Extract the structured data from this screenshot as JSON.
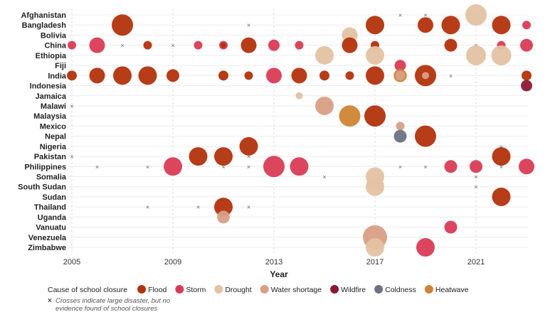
{
  "chart_data": {
    "type": "scatter",
    "subtype": "bubble timeline",
    "xlabel": "Year",
    "xlim": [
      2005,
      2023
    ],
    "xticks": [
      2005,
      2009,
      2013,
      2017,
      2021
    ],
    "grid": "horizontal rows, dashed verticals at ticks",
    "legend_title": "Cause of school closure",
    "legend_position": "bottom",
    "legend_note": [
      "Crosses indicate large disaster, but no",
      "evidence found of school closures"
    ],
    "types": [
      {
        "key": "F",
        "name": "Flood",
        "color": "#b3320c"
      },
      {
        "key": "S",
        "name": "Storm",
        "color": "#d93c55"
      },
      {
        "key": "D",
        "name": "Drought",
        "color": "#e4c2a2"
      },
      {
        "key": "W",
        "name": "Water shortage",
        "color": "#d89f86"
      },
      {
        "key": "WF",
        "name": "Wildfire",
        "color": "#8a1a30"
      },
      {
        "key": "C",
        "name": "Coldness",
        "color": "#6b7280"
      },
      {
        "key": "H",
        "name": "Heatwave",
        "color": "#cd8535"
      }
    ],
    "cross_marker": "×",
    "point_fields": [
      "year",
      "type",
      "relative_size"
    ],
    "countries": [
      {
        "name": "Afghanistan",
        "points": [
          [
            2018,
            "X",
            0
          ],
          [
            2019,
            "X",
            0
          ],
          [
            2021,
            "D",
            15
          ]
        ]
      },
      {
        "name": "Bangladesh",
        "points": [
          [
            2007,
            "F",
            15
          ],
          [
            2012,
            "X",
            0
          ],
          [
            2017,
            "F",
            13
          ],
          [
            2019,
            "F",
            11
          ],
          [
            2020,
            "F",
            13
          ],
          [
            2022,
            "F",
            13
          ],
          [
            2023,
            "S",
            6
          ]
        ]
      },
      {
        "name": "Bolivia",
        "points": [
          [
            2016,
            "D",
            11
          ]
        ]
      },
      {
        "name": "China",
        "points": [
          [
            2005,
            "S",
            6
          ],
          [
            2006,
            "S",
            11
          ],
          [
            2007,
            "X",
            0
          ],
          [
            2008,
            "F",
            6
          ],
          [
            2009,
            "X",
            0
          ],
          [
            2010,
            "S",
            6
          ],
          [
            2011,
            "S",
            6
          ],
          [
            2011,
            "F",
            4
          ],
          [
            2012,
            "F",
            11
          ],
          [
            2013,
            "S",
            8
          ],
          [
            2014,
            "S",
            6
          ],
          [
            2016,
            "F",
            11
          ],
          [
            2017,
            "F",
            6
          ],
          [
            2020,
            "F",
            9
          ],
          [
            2021,
            "X",
            0
          ],
          [
            2022,
            "S",
            6
          ],
          [
            2023,
            "S",
            9
          ]
        ]
      },
      {
        "name": "Ethiopia",
        "points": [
          [
            2015,
            "D",
            13
          ],
          [
            2017,
            "D",
            13
          ],
          [
            2021,
            "D",
            14
          ],
          [
            2022,
            "D",
            14
          ]
        ]
      },
      {
        "name": "Fiji",
        "points": [
          [
            2018,
            "S",
            8
          ]
        ]
      },
      {
        "name": "India",
        "points": [
          [
            2005,
            "F",
            7
          ],
          [
            2006,
            "F",
            11
          ],
          [
            2007,
            "F",
            13
          ],
          [
            2008,
            "F",
            13
          ],
          [
            2009,
            "F",
            9
          ],
          [
            2011,
            "F",
            7
          ],
          [
            2012,
            "F",
            6
          ],
          [
            2013,
            "S",
            11
          ],
          [
            2014,
            "F",
            11
          ],
          [
            2015,
            "F",
            7
          ],
          [
            2016,
            "F",
            6
          ],
          [
            2017,
            "F",
            13
          ],
          [
            2018,
            "H",
            8
          ],
          [
            2018,
            "W",
            6
          ],
          [
            2019,
            "F",
            15
          ],
          [
            2019,
            "W",
            5
          ],
          [
            2020,
            "X",
            0
          ],
          [
            2023,
            "F",
            7
          ]
        ]
      },
      {
        "name": "Indonesia",
        "points": [
          [
            2023,
            "WF",
            8
          ]
        ]
      },
      {
        "name": "Jamaica",
        "points": [
          [
            2014,
            "D",
            5
          ]
        ]
      },
      {
        "name": "Malawi",
        "points": [
          [
            2005,
            "X",
            0
          ],
          [
            2015,
            "W",
            13
          ]
        ]
      },
      {
        "name": "Malaysia",
        "points": [
          [
            2016,
            "H",
            15
          ],
          [
            2017,
            "F",
            15
          ]
        ]
      },
      {
        "name": "Mexico",
        "points": [
          [
            2018,
            "W",
            6
          ]
        ]
      },
      {
        "name": "Nepal",
        "points": [
          [
            2018,
            "C",
            9
          ],
          [
            2019,
            "F",
            15
          ]
        ]
      },
      {
        "name": "Nigeria",
        "points": [
          [
            2012,
            "F",
            13
          ],
          [
            2022,
            "X",
            0
          ]
        ]
      },
      {
        "name": "Pakistan",
        "points": [
          [
            2005,
            "X",
            0
          ],
          [
            2010,
            "F",
            13
          ],
          [
            2011,
            "F",
            13
          ],
          [
            2012,
            "X",
            0
          ],
          [
            2022,
            "F",
            13
          ]
        ]
      },
      {
        "name": "Philippines",
        "points": [
          [
            2006,
            "X",
            0
          ],
          [
            2008,
            "X",
            0
          ],
          [
            2009,
            "S",
            13
          ],
          [
            2011,
            "X",
            0
          ],
          [
            2012,
            "X",
            0
          ],
          [
            2013,
            "S",
            15
          ],
          [
            2014,
            "S",
            13
          ],
          [
            2018,
            "X",
            0
          ],
          [
            2019,
            "X",
            0
          ],
          [
            2020,
            "S",
            9
          ],
          [
            2021,
            "S",
            9
          ],
          [
            2022,
            "X",
            0
          ],
          [
            2023,
            "S",
            11
          ]
        ]
      },
      {
        "name": "Somalia",
        "points": [
          [
            2015,
            "X",
            0
          ],
          [
            2017,
            "D",
            13
          ],
          [
            2021,
            "X",
            0
          ]
        ]
      },
      {
        "name": "South Sudan",
        "points": [
          [
            2017,
            "D",
            13
          ],
          [
            2021,
            "X",
            0
          ]
        ]
      },
      {
        "name": "Sudan",
        "points": [
          [
            2022,
            "F",
            13
          ]
        ]
      },
      {
        "name": "Thailand",
        "points": [
          [
            2008,
            "X",
            0
          ],
          [
            2010,
            "X",
            0
          ],
          [
            2011,
            "F",
            13
          ],
          [
            2012,
            "X",
            0
          ]
        ]
      },
      {
        "name": "Uganda",
        "points": [
          [
            2011,
            "W",
            9
          ]
        ]
      },
      {
        "name": "Vanuatu",
        "points": [
          [
            2020,
            "S",
            9
          ]
        ]
      },
      {
        "name": "Venezuela",
        "points": [
          [
            2017,
            "W",
            17
          ]
        ]
      },
      {
        "name": "Zimbabwe",
        "points": [
          [
            2017,
            "D",
            13
          ],
          [
            2019,
            "S",
            13
          ]
        ]
      }
    ]
  }
}
